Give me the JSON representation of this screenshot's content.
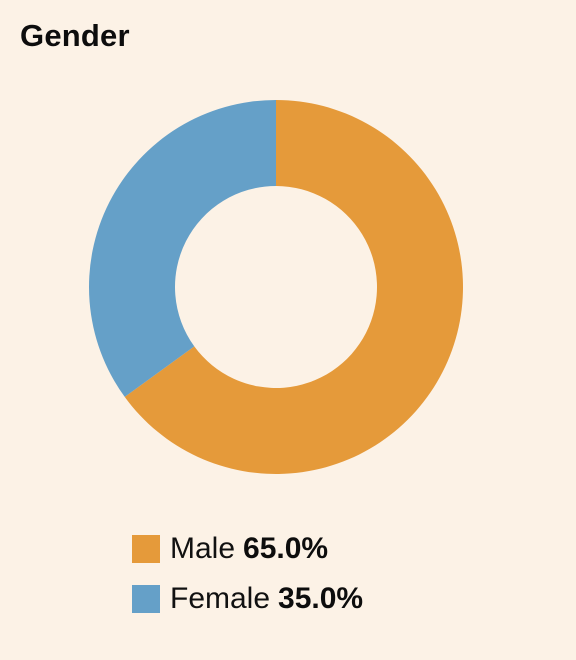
{
  "title": "Gender",
  "chart_data": {
    "type": "pie",
    "donut": true,
    "title": "Gender",
    "categories": [
      "Male",
      "Female"
    ],
    "values": [
      65.0,
      35.0
    ],
    "value_labels": [
      "65.0%",
      "35.0%"
    ],
    "colors": [
      "#e59a3a",
      "#65a0c8"
    ],
    "start_angle_deg": 0,
    "direction": "clockwise",
    "legend": "bottom"
  },
  "legend": [
    {
      "label": "Male",
      "value": "65.0%",
      "color": "#e59a3a"
    },
    {
      "label": "Female",
      "value": "35.0%",
      "color": "#65a0c8"
    }
  ]
}
